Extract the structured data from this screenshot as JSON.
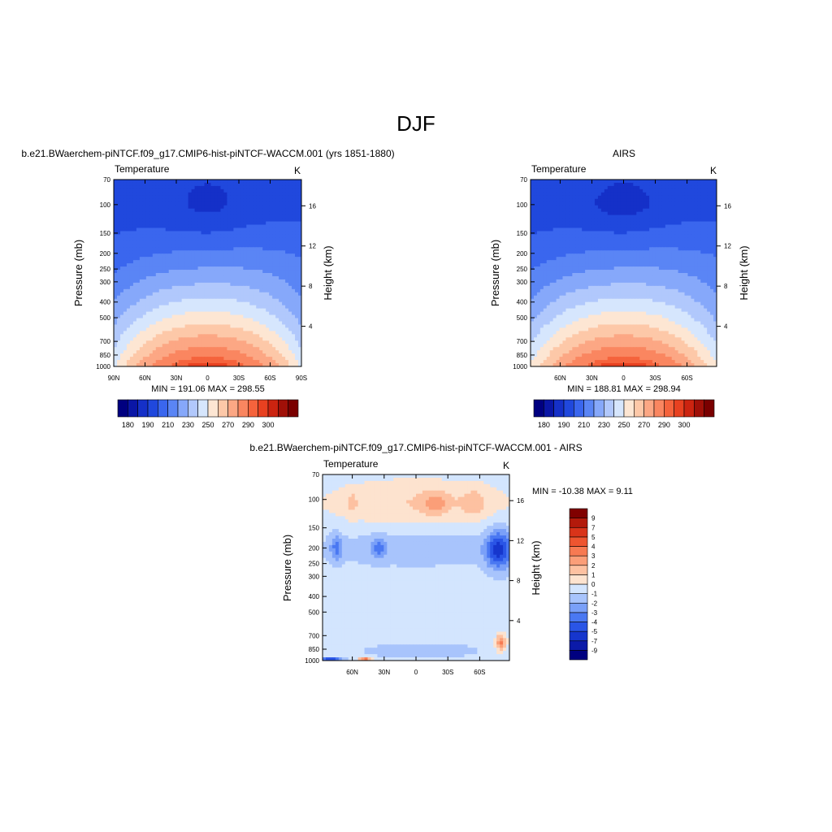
{
  "page_title": "DJF",
  "colors": {
    "temperature_levels": [
      "#000080",
      "#0a16a6",
      "#1530c8",
      "#2048dd",
      "#3a66ee",
      "#5a85f5",
      "#86a8fa",
      "#b1c8fc",
      "#d6e6fd",
      "#fde6d3",
      "#fdc8a8",
      "#fca784",
      "#fa8660",
      "#f5633c",
      "#e84120",
      "#cc2410",
      "#a01008",
      "#7a0000"
    ],
    "difference_levels": [
      "#000080",
      "#0b1aa8",
      "#1636cd",
      "#2a55e6",
      "#4a78f2",
      "#7aa0f8",
      "#a8c4fc",
      "#d3e5fe",
      "#fde3cf",
      "#fdc1a1",
      "#fb9e78",
      "#f77a52",
      "#ee5530",
      "#d9341a",
      "#b31a0b",
      "#800000"
    ]
  },
  "chart_data": [
    {
      "type": "heatmap",
      "name": "model",
      "title": "b.e21.BWaerchem-piNTCF.f09_g17.CMIP6-hist-piNTCF-WACCM.001 (yrs 1851-1880)",
      "variable": "Temperature",
      "units": "K",
      "ylabel": "Pressure (mb)",
      "y2label": "Height (km)",
      "x_tick_labels": [
        "90N",
        "60N",
        "30N",
        "0",
        "30S",
        "60S",
        "90S"
      ],
      "x_tick_values": [
        90,
        60,
        30,
        0,
        -30,
        -60,
        -90
      ],
      "xlim": [
        90,
        -90
      ],
      "pressure_ticks": [
        70,
        100,
        150,
        200,
        250,
        300,
        400,
        500,
        700,
        850,
        1000
      ],
      "ylim": [
        1000,
        70
      ],
      "y_scale": "log",
      "height_ticks_km": [
        4,
        8,
        12,
        16
      ],
      "min_label": "MIN = 191.06  MAX = 298.55",
      "min": 191.06,
      "max": 298.55,
      "colorbar": {
        "orientation": "horizontal",
        "boundaries": [
          175,
          180,
          185,
          190,
          200,
          210,
          220,
          230,
          240,
          250,
          260,
          270,
          280,
          290,
          295,
          300,
          305
        ],
        "labels": [
          "180",
          "190",
          "210",
          "230",
          "250",
          "270",
          "290",
          "300"
        ],
        "label_values": [
          180,
          190,
          210,
          230,
          250,
          270,
          290,
          300
        ]
      },
      "grid": false
    },
    {
      "type": "heatmap",
      "name": "obs",
      "title": "AIRS",
      "variable": "Temperature",
      "units": "K",
      "ylabel": "Pressure (mb)",
      "y2label": "Height (km)",
      "x_tick_labels": [
        "60N",
        "30N",
        "0",
        "30S",
        "60S"
      ],
      "x_tick_values": [
        60,
        30,
        0,
        -30,
        -60
      ],
      "xlim": [
        88,
        -88
      ],
      "pressure_ticks": [
        70,
        100,
        150,
        200,
        250,
        300,
        400,
        500,
        700,
        850,
        1000
      ],
      "ylim": [
        1000,
        70
      ],
      "y_scale": "log",
      "height_ticks_km": [
        4,
        8,
        12,
        16
      ],
      "min_label": "MIN = 188.81  MAX = 298.94",
      "min": 188.81,
      "max": 298.94,
      "colorbar": {
        "orientation": "horizontal",
        "boundaries": [
          175,
          180,
          185,
          190,
          200,
          210,
          220,
          230,
          240,
          250,
          260,
          270,
          280,
          290,
          295,
          300,
          305
        ],
        "labels": [
          "180",
          "190",
          "210",
          "230",
          "250",
          "270",
          "290",
          "300"
        ],
        "label_values": [
          180,
          190,
          210,
          230,
          250,
          270,
          290,
          300
        ]
      },
      "grid": false
    },
    {
      "type": "heatmap",
      "name": "diff",
      "title": "b.e21.BWaerchem-piNTCF.f09_g17.CMIP6-hist-piNTCF-WACCM.001 - AIRS",
      "variable": "Temperature",
      "units": "K",
      "ylabel": "Pressure (mb)",
      "y2label": "Height (km)",
      "x_tick_labels": [
        "60N",
        "30N",
        "0",
        "30S",
        "60S"
      ],
      "x_tick_values": [
        60,
        30,
        0,
        -30,
        -60
      ],
      "xlim": [
        88,
        -88
      ],
      "pressure_ticks": [
        70,
        100,
        150,
        200,
        250,
        300,
        400,
        500,
        700,
        850,
        1000
      ],
      "ylim": [
        1000,
        70
      ],
      "y_scale": "log",
      "height_ticks_km": [
        4,
        8,
        12,
        16
      ],
      "min_label": "MIN = -10.38  MAX =   9.11",
      "min": -10.38,
      "max": 9.11,
      "colorbar": {
        "orientation": "vertical",
        "boundaries": [
          -11,
          -9,
          -7,
          -5,
          -4,
          -3,
          -2,
          -1,
          0,
          1,
          2,
          3,
          4,
          5,
          7,
          9,
          11
        ],
        "labels": [
          "9",
          "7",
          "5",
          "4",
          "3",
          "2",
          "1",
          "0",
          "-1",
          "-2",
          "-3",
          "-4",
          "-5",
          "-7",
          "-9"
        ],
        "label_values": [
          9,
          7,
          5,
          4,
          3,
          2,
          1,
          0,
          -1,
          -2,
          -3,
          -4,
          -5,
          -7,
          -9
        ]
      },
      "grid": false
    }
  ]
}
